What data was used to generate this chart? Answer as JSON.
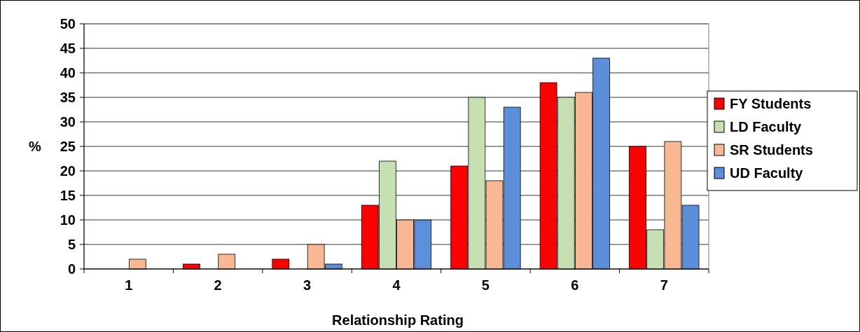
{
  "chart_data": {
    "type": "bar",
    "xlabel": "Relationship Rating",
    "ylabel": "%",
    "categories": [
      "1",
      "2",
      "3",
      "4",
      "5",
      "6",
      "7"
    ],
    "series": [
      {
        "name": "FY Students",
        "color": "#ff0000",
        "values": [
          0,
          1,
          2,
          13,
          21,
          38,
          25
        ]
      },
      {
        "name": "LD Faculty",
        "color": "#c6e0b4",
        "values": [
          0,
          0,
          0,
          22,
          35,
          35,
          8
        ]
      },
      {
        "name": "SR Students",
        "color": "#f8b894",
        "values": [
          2,
          3,
          5,
          10,
          18,
          36,
          26
        ]
      },
      {
        "name": "UD Faculty",
        "color": "#5b8fd9",
        "values": [
          0,
          0,
          1,
          10,
          33,
          43,
          13
        ]
      }
    ],
    "ylim": [
      0,
      50
    ],
    "yticks": [
      0,
      5,
      10,
      15,
      20,
      25,
      30,
      35,
      40,
      45,
      50
    ],
    "grid": "y",
    "legend": "right"
  }
}
